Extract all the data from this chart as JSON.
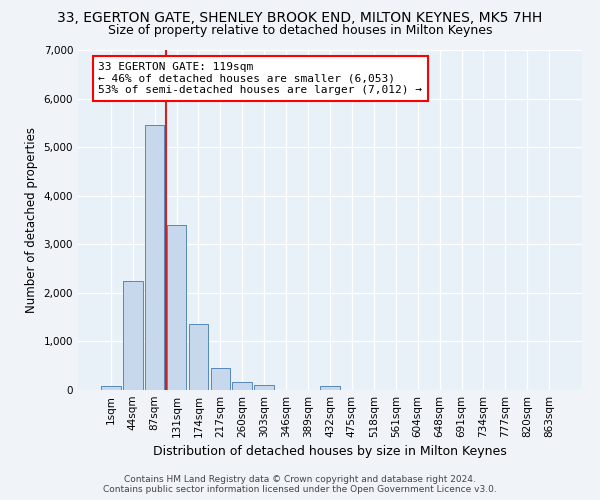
{
  "title": "33, EGERTON GATE, SHENLEY BROOK END, MILTON KEYNES, MK5 7HH",
  "subtitle": "Size of property relative to detached houses in Milton Keynes",
  "xlabel": "Distribution of detached houses by size in Milton Keynes",
  "ylabel": "Number of detached properties",
  "footer_line1": "Contains HM Land Registry data © Crown copyright and database right 2024.",
  "footer_line2": "Contains public sector information licensed under the Open Government Licence v3.0.",
  "bar_labels": [
    "1sqm",
    "44sqm",
    "87sqm",
    "131sqm",
    "174sqm",
    "217sqm",
    "260sqm",
    "303sqm",
    "346sqm",
    "389sqm",
    "432sqm",
    "475sqm",
    "518sqm",
    "561sqm",
    "604sqm",
    "648sqm",
    "691sqm",
    "734sqm",
    "777sqm",
    "820sqm",
    "863sqm"
  ],
  "bar_values": [
    75,
    2250,
    5450,
    3400,
    1350,
    450,
    170,
    100,
    0,
    0,
    75,
    0,
    0,
    0,
    0,
    0,
    0,
    0,
    0,
    0,
    0
  ],
  "bar_color": "#c8d8ec",
  "bar_edge_color": "#5588bb",
  "property_line_x": 2.5,
  "annotation_text": "33 EGERTON GATE: 119sqm\n← 46% of detached houses are smaller (6,053)\n53% of semi-detached houses are larger (7,012) →",
  "annotation_box_color": "white",
  "annotation_box_edge": "red",
  "property_line_color": "#cc2222",
  "ylim": [
    0,
    7000
  ],
  "yticks": [
    0,
    1000,
    2000,
    3000,
    4000,
    5000,
    6000,
    7000
  ],
  "bg_color": "#f0f4f8",
  "plot_bg_color": "#e8f0f8",
  "grid_color": "white",
  "title_fontsize": 10,
  "subtitle_fontsize": 9,
  "xlabel_fontsize": 9,
  "ylabel_fontsize": 8.5,
  "tick_fontsize": 7.5,
  "footer_fontsize": 6.5
}
